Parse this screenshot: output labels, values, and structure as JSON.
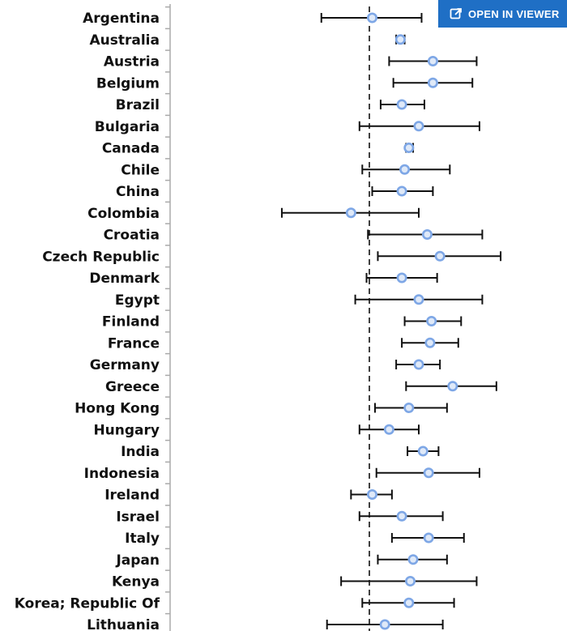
{
  "viewer_button": {
    "label": "OPEN IN VIEWER",
    "icon": "open-external-icon"
  },
  "colors": {
    "marker": "#7ea7e6",
    "marker_fill": "#dfe9f8",
    "error_bar": "#111111",
    "reference_line": "#111111",
    "axis": "#aaaaaa"
  },
  "chart_data": {
    "type": "scatter",
    "orientation": "horizontal-forest",
    "xlim": [
      -1.4,
      1.4
    ],
    "reference_line_x": 0,
    "reference_line_style": "dashed",
    "grid": false,
    "categories": [
      "Argentina",
      "Australia",
      "Austria",
      "Belgium",
      "Brazil",
      "Bulgaria",
      "Canada",
      "Chile",
      "China",
      "Colombia",
      "Croatia",
      "Czech Republic",
      "Denmark",
      "Egypt",
      "Finland",
      "France",
      "Germany",
      "Greece",
      "Hong Kong",
      "Hungary",
      "India",
      "Indonesia",
      "Ireland",
      "Israel",
      "Italy",
      "Japan",
      "Kenya",
      "Korea; Republic Of",
      "Lithuania"
    ],
    "series": [
      {
        "values": [
          0.02,
          0.22,
          0.45,
          0.45,
          0.23,
          0.35,
          0.28,
          0.25,
          0.23,
          -0.13,
          0.41,
          0.5,
          0.23,
          0.35,
          0.44,
          0.43,
          0.35,
          0.59,
          0.28,
          0.14,
          0.38,
          0.42,
          0.02,
          0.23,
          0.42,
          0.31,
          0.29,
          0.28,
          0.11
        ],
        "lower": [
          -0.34,
          0.19,
          0.14,
          0.17,
          0.08,
          -0.07,
          0.26,
          -0.05,
          0.02,
          -0.62,
          -0.01,
          0.06,
          -0.02,
          -0.1,
          0.25,
          0.23,
          0.19,
          0.26,
          0.04,
          -0.07,
          0.27,
          0.05,
          -0.13,
          -0.07,
          0.16,
          0.06,
          -0.2,
          -0.05,
          -0.3
        ],
        "upper": [
          0.37,
          0.25,
          0.76,
          0.73,
          0.39,
          0.78,
          0.31,
          0.57,
          0.45,
          0.35,
          0.8,
          0.93,
          0.48,
          0.8,
          0.65,
          0.63,
          0.5,
          0.9,
          0.55,
          0.35,
          0.49,
          0.78,
          0.16,
          0.52,
          0.67,
          0.55,
          0.76,
          0.6,
          0.52
        ]
      }
    ]
  }
}
